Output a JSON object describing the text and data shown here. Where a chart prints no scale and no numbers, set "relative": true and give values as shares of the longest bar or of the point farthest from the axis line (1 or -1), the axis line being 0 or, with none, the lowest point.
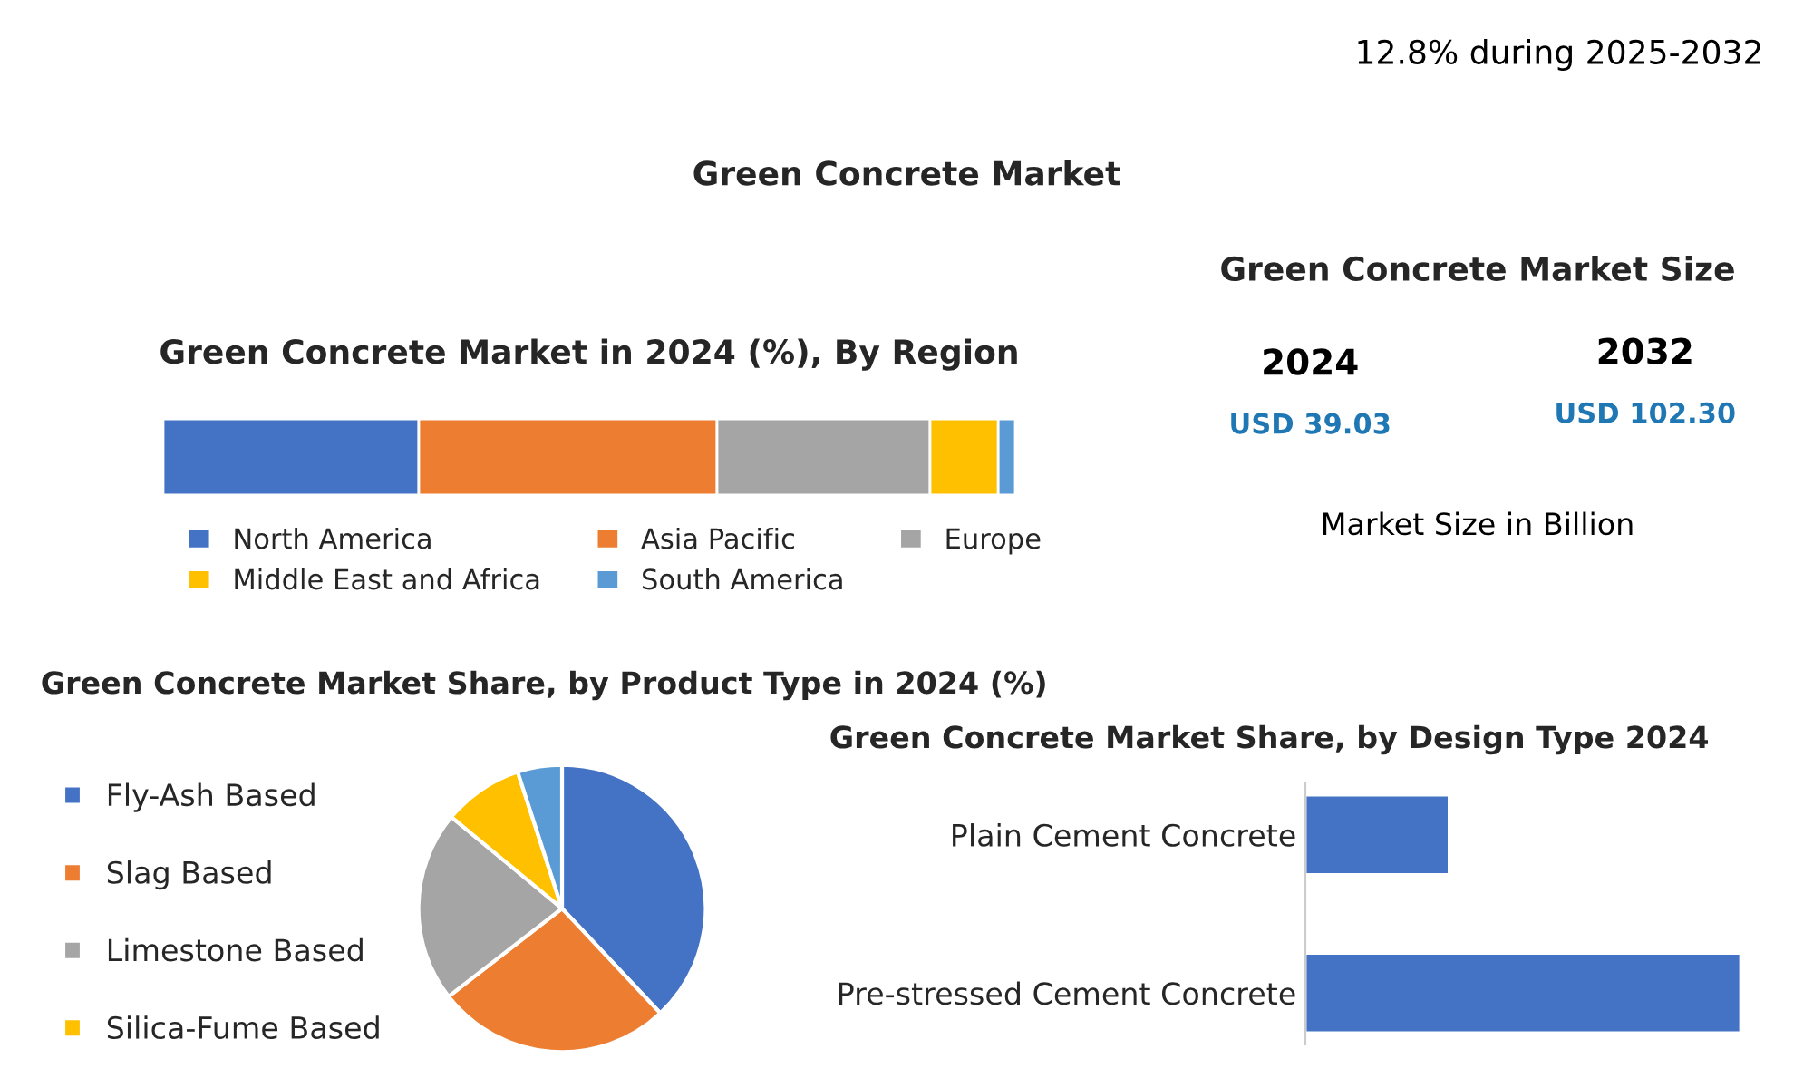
{
  "chart_data": [
    {
      "type": "other",
      "title": "Green Concrete Market",
      "annotations": [
        "12.8% during 2025-2032"
      ]
    },
    {
      "type": "bar",
      "title": "Green Concrete Market in 2024 (%), By Region",
      "orientation": "horizontal",
      "stacked": true,
      "relative": true,
      "legend": "bottom",
      "categories": [
        null
      ],
      "series": [
        {
          "name": "North America",
          "color": "#4472c4",
          "values": [
            0.3
          ]
        },
        {
          "name": "Asia Pacific",
          "color": "#ed7d31",
          "values": [
            0.35
          ]
        },
        {
          "name": "Europe",
          "color": "#a5a5a5",
          "values": [
            0.25
          ]
        },
        {
          "name": "Middle East and Africa",
          "color": "#ffc000",
          "values": [
            0.08
          ]
        },
        {
          "name": "South America",
          "color": "#5b9bd5",
          "values": [
            0.02
          ]
        }
      ]
    },
    {
      "type": "other",
      "title": "Green Concrete Market Size",
      "annotations": [
        "2024",
        "2032",
        "USD 39.03",
        "USD 102.30",
        "Market Size in Billion"
      ]
    },
    {
      "type": "pie",
      "title": "Green Concrete Market Share, by Product Type in 2024 (%)",
      "legend": "left",
      "categories": [
        "Fly-Ash Based",
        "Slag Based",
        "Limestone Based",
        "Silica-Fume Based",
        null
      ],
      "values": [
        38,
        26.5,
        21.5,
        9,
        5
      ],
      "colors": [
        "#4472c4",
        "#ed7d31",
        "#a5a5a5",
        "#ffc000",
        "#5b9bd5"
      ]
    },
    {
      "type": "bar",
      "title": "Green Concrete Market Share, by Design Type 2024",
      "orientation": "horizontal",
      "relative": true,
      "categories": [
        "Plain Cement Concrete",
        "Pre-stressed Cement Concrete"
      ],
      "values": [
        0.33,
        1
      ],
      "color": "#4472c4"
    }
  ]
}
